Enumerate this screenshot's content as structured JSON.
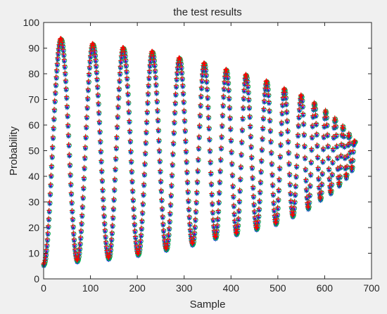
{
  "chart_data": {
    "type": "scatter",
    "title": "the test results",
    "xlabel": "Sample",
    "ylabel": "Probability",
    "xlim": [
      0,
      700
    ],
    "ylim": [
      0,
      100
    ],
    "xticks": [
      0,
      100,
      200,
      300,
      400,
      500,
      600,
      700
    ],
    "yticks": [
      0,
      10,
      20,
      30,
      40,
      50,
      60,
      70,
      80,
      90,
      100
    ],
    "grid": false,
    "n_samples": 665,
    "envelope": {
      "peaks": [
        {
          "x": 37,
          "y": 93
        },
        {
          "x": 105,
          "y": 91
        },
        {
          "x": 170,
          "y": 89.5
        },
        {
          "x": 232,
          "y": 88
        },
        {
          "x": 290,
          "y": 85.5
        },
        {
          "x": 343,
          "y": 83.5
        },
        {
          "x": 390,
          "y": 81
        },
        {
          "x": 432,
          "y": 79
        },
        {
          "x": 476,
          "y": 76.5
        },
        {
          "x": 514,
          "y": 73.5
        },
        {
          "x": 550,
          "y": 71
        },
        {
          "x": 578,
          "y": 68
        },
        {
          "x": 602,
          "y": 65
        },
        {
          "x": 622,
          "y": 62
        },
        {
          "x": 639,
          "y": 59
        },
        {
          "x": 652,
          "y": 56
        },
        {
          "x": 663,
          "y": 53
        }
      ],
      "troughs": [
        {
          "x": 0,
          "y": 5
        },
        {
          "x": 72,
          "y": 6.5
        },
        {
          "x": 139,
          "y": 7.5
        },
        {
          "x": 202,
          "y": 9
        },
        {
          "x": 262,
          "y": 11
        },
        {
          "x": 318,
          "y": 13
        },
        {
          "x": 367,
          "y": 15.5
        },
        {
          "x": 412,
          "y": 17
        },
        {
          "x": 455,
          "y": 19
        },
        {
          "x": 496,
          "y": 21
        },
        {
          "x": 532,
          "y": 24
        },
        {
          "x": 565,
          "y": 27
        },
        {
          "x": 591,
          "y": 30.5
        },
        {
          "x": 613,
          "y": 33
        },
        {
          "x": 631,
          "y": 36
        },
        {
          "x": 646,
          "y": 39
        },
        {
          "x": 658,
          "y": 42
        }
      ]
    },
    "series": [
      {
        "marker": "star",
        "color": "#0000ff"
      },
      {
        "marker": "circle",
        "color": "#00b050"
      },
      {
        "marker": "plus",
        "color": "#ff0000"
      }
    ]
  }
}
